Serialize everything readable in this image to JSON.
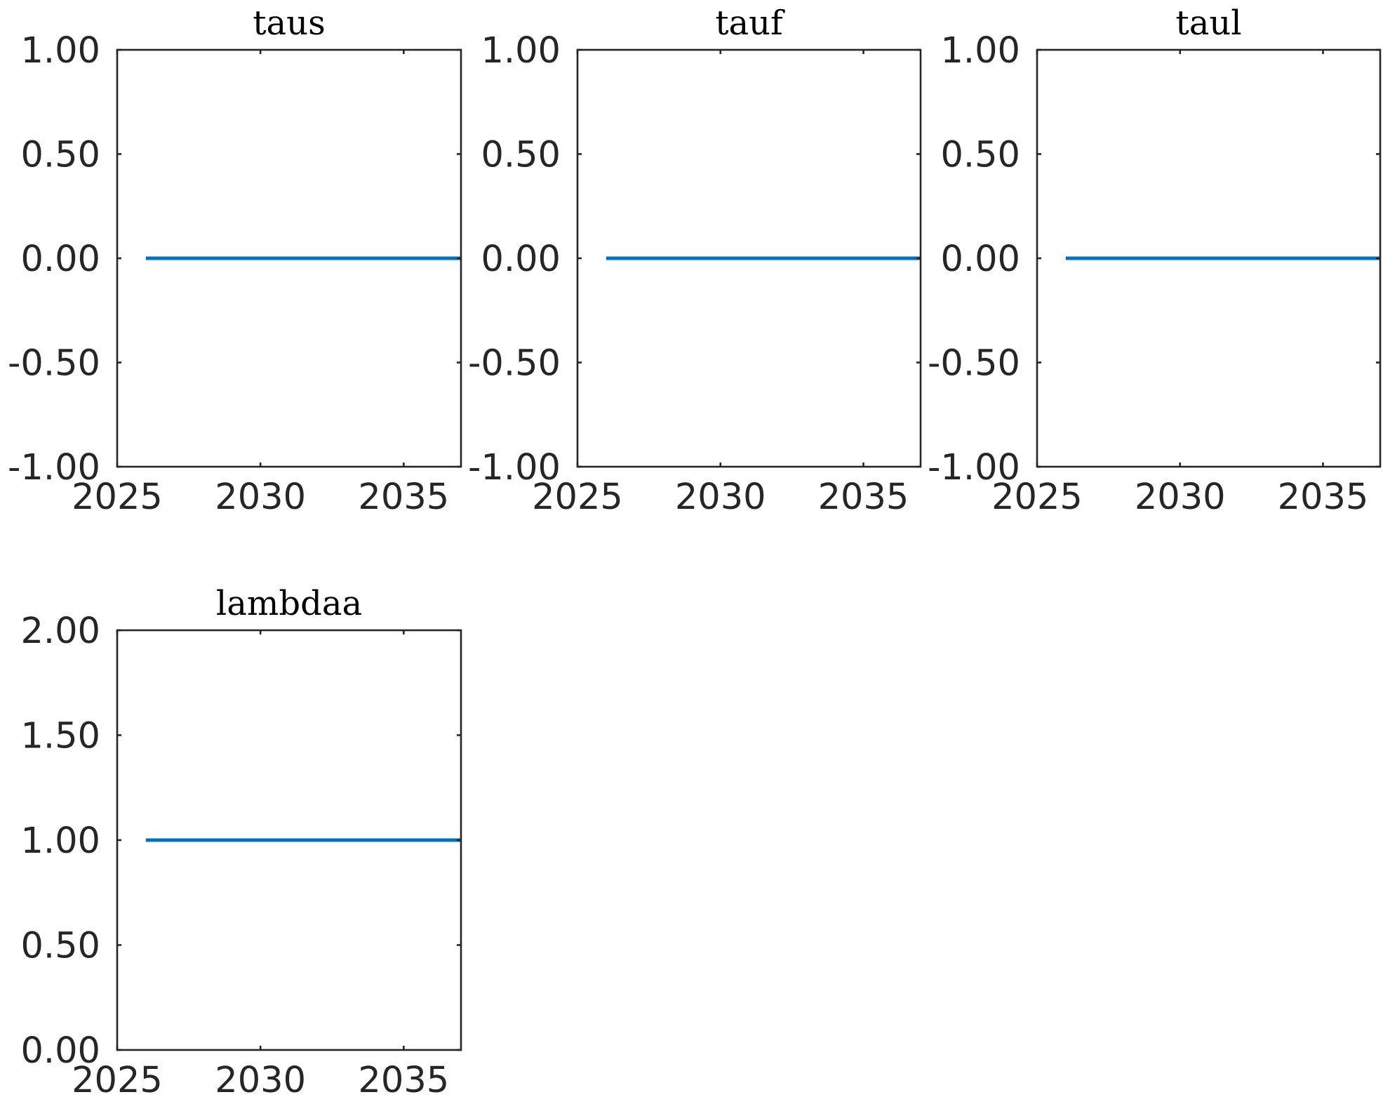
{
  "chart_data": [
    {
      "type": "line",
      "title": "taus",
      "x": [
        2026,
        2037
      ],
      "series": [
        {
          "values": [
            0,
            0
          ],
          "color": "#0072BD"
        }
      ],
      "xlim": [
        2025,
        2037
      ],
      "ylim": [
        -1,
        1
      ],
      "xticks": [
        2025,
        2030,
        2035
      ],
      "yticks": [
        -1,
        -0.5,
        0,
        0.5,
        1
      ],
      "xtick_labels": [
        "2025",
        "2030",
        "2035"
      ],
      "ytick_labels": [
        "-1.00",
        "-0.50",
        "0.00",
        "0.50",
        "1.00"
      ],
      "grid": false
    },
    {
      "type": "line",
      "title": "tauf",
      "x": [
        2026,
        2037
      ],
      "series": [
        {
          "values": [
            0,
            0
          ],
          "color": "#0072BD"
        }
      ],
      "xlim": [
        2025,
        2037
      ],
      "ylim": [
        -1,
        1
      ],
      "xticks": [
        2025,
        2030,
        2035
      ],
      "yticks": [
        -1,
        -0.5,
        0,
        0.5,
        1
      ],
      "xtick_labels": [
        "2025",
        "2030",
        "2035"
      ],
      "ytick_labels": [
        "-1.00",
        "-0.50",
        "0.00",
        "0.50",
        "1.00"
      ],
      "grid": false
    },
    {
      "type": "line",
      "title": "taul",
      "x": [
        2026,
        2037
      ],
      "series": [
        {
          "values": [
            0,
            0
          ],
          "color": "#0072BD"
        }
      ],
      "xlim": [
        2025,
        2037
      ],
      "ylim": [
        -1,
        1
      ],
      "xticks": [
        2025,
        2030,
        2035
      ],
      "yticks": [
        -1,
        -0.5,
        0,
        0.5,
        1
      ],
      "xtick_labels": [
        "2025",
        "2030",
        "2035"
      ],
      "ytick_labels": [
        "-1.00",
        "-0.50",
        "0.00",
        "0.50",
        "1.00"
      ],
      "grid": false
    },
    {
      "type": "line",
      "title": "lambdaa",
      "x": [
        2026,
        2037
      ],
      "series": [
        {
          "values": [
            1,
            1
          ],
          "color": "#0072BD"
        }
      ],
      "xlim": [
        2025,
        2037
      ],
      "ylim": [
        0,
        2
      ],
      "xticks": [
        2025,
        2030,
        2035
      ],
      "yticks": [
        0,
        0.5,
        1,
        1.5,
        2
      ],
      "xtick_labels": [
        "2025",
        "2030",
        "2035"
      ],
      "ytick_labels": [
        "0.00",
        "0.50",
        "1.00",
        "1.50",
        "2.00"
      ],
      "grid": false
    }
  ]
}
